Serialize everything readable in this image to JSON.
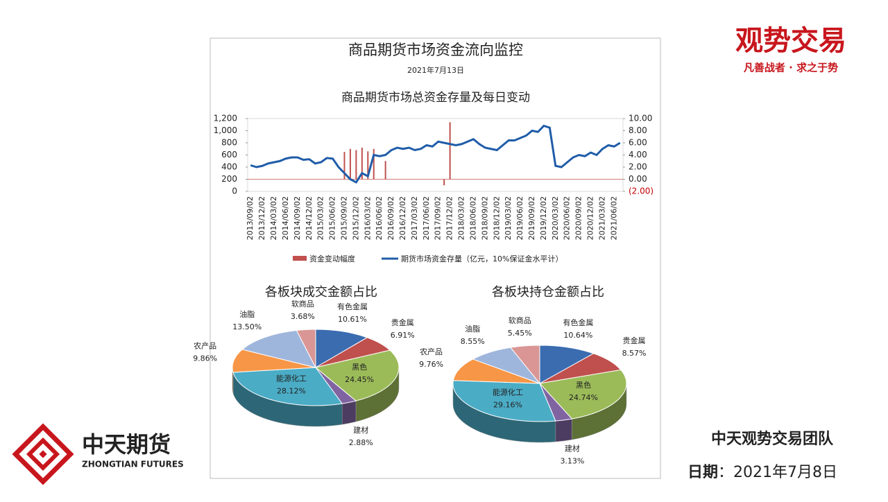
{
  "slide": {
    "logo_title": "观势交易",
    "logo_motto": "凡善战者 · 求之于势",
    "company_cn": "中天期货",
    "company_en": "ZHONGTIAN FUTURES",
    "team": "中天观势交易团队",
    "date_label": "日期",
    "date_value": "：2021年7月8日"
  },
  "report": {
    "title": "商品期货市场资金流向监控",
    "date": "2021年7月13日"
  },
  "chart_data": [
    {
      "type": "combo",
      "title": "商品期货市场总资金存量及每日变动",
      "categories": [
        "2013/09/02",
        null,
        "2013/12/02",
        null,
        "2014/03/02",
        null,
        "2014/06/02",
        null,
        "2014/09/02",
        null,
        "2014/12/02",
        null,
        "2015/03/02",
        null,
        "2015/06/02",
        null,
        "2015/09/02",
        null,
        "2015/12/02",
        null,
        "2016/03/02",
        null,
        "2016/06/02",
        null,
        "2016/09/02",
        null,
        "2016/12/02",
        null,
        "2017/03/02",
        null,
        "2017/06/02",
        null,
        "2017/09/02",
        null,
        "2017/12/02",
        null,
        "2018/03/02",
        null,
        "2018/06/02",
        null,
        "2018/09/02",
        null,
        "2018/12/02",
        null,
        "2019/03/02",
        null,
        "2019/06/02",
        null,
        "2019/09/02",
        null,
        "2019/12/02",
        null,
        "2020/03/02",
        null,
        "2020/06/02",
        null,
        "2020/09/02",
        null,
        "2020/12/02",
        null,
        "2021/03/02",
        null,
        "2021/06/02",
        null
      ],
      "series": [
        {
          "name": "资金变动幅度",
          "color": "#c0504d",
          "axis": "y2",
          "kind": "bar",
          "values": [
            0,
            0,
            0,
            0,
            0,
            0,
            0,
            0,
            0,
            0,
            0,
            0,
            0,
            0,
            0,
            0,
            4.5,
            5,
            4.8,
            5.2,
            4.6,
            5.0,
            0,
            3.0,
            0,
            0,
            0,
            0,
            0,
            0,
            0,
            0,
            0,
            -1.0,
            9.4,
            0,
            0,
            0,
            0,
            0,
            0,
            0,
            0,
            0,
            0,
            0,
            0,
            0,
            0,
            0,
            0,
            0,
            0,
            0,
            0,
            0,
            0,
            0,
            0,
            0,
            0,
            0,
            0,
            0
          ]
        },
        {
          "name": "期货市场资金存量（亿元，10%保证金水平计）",
          "color": "#1f5ca8",
          "kind": "line",
          "values": [
            430,
            400,
            420,
            460,
            480,
            500,
            540,
            560,
            560,
            520,
            530,
            460,
            480,
            550,
            540,
            400,
            300,
            200,
            150,
            300,
            250,
            600,
            580,
            600,
            680,
            720,
            700,
            720,
            680,
            700,
            760,
            740,
            820,
            800,
            780,
            760,
            780,
            820,
            860,
            780,
            720,
            700,
            680,
            760,
            840,
            840,
            880,
            920,
            1000,
            980,
            1080,
            1050,
            420,
            400,
            480,
            560,
            600,
            580,
            640,
            600,
            700,
            760,
            740,
            800
          ]
        }
      ],
      "ylim": [
        0,
        1200
      ],
      "yticks": [
        0,
        200,
        400,
        600,
        800,
        {
          "value": 1000,
          "label": "1,000"
        },
        {
          "value": 1200,
          "label": "1,200"
        }
      ],
      "y2lim": [
        -2,
        10
      ],
      "y2ticks": [
        {
          "value": -2,
          "label": "(2.00)"
        },
        {
          "value": 0,
          "label": "0.00"
        },
        {
          "value": 2,
          "label": "2.00"
        },
        {
          "value": 4,
          "label": "4.00"
        },
        {
          "value": 6,
          "label": "6.00"
        },
        {
          "value": 8,
          "label": "8.00"
        },
        {
          "value": 10,
          "label": "10.00"
        }
      ]
    },
    {
      "type": "pie",
      "title": "各板块成交金额占比",
      "categories": [
        "有色金属",
        "贵金属",
        "黑色",
        "建材",
        "能源化工",
        "农产品",
        "油脂",
        "软商品"
      ],
      "values": [
        10.61,
        6.91,
        24.45,
        2.88,
        28.12,
        9.86,
        13.5,
        3.68
      ],
      "value_labels": [
        "10.61%",
        "6.91%",
        "24.45%",
        "2.88%",
        "28.12%",
        "9.86%",
        "13.50%",
        "3.68%"
      ],
      "colors": [
        "#3b6cb0",
        "#c0504d",
        "#9bbb59",
        "#8064a2",
        "#4bacc6",
        "#f79646",
        "#9fb6dc",
        "#d99694"
      ]
    },
    {
      "type": "pie",
      "title": "各板块持仓金额占比",
      "categories": [
        "有色金属",
        "贵金属",
        "黑色",
        "建材",
        "能源化工",
        "农产品",
        "油脂",
        "软商品"
      ],
      "values": [
        10.64,
        8.57,
        24.74,
        3.13,
        29.16,
        9.76,
        8.55,
        5.45
      ],
      "value_labels": [
        "10.64%",
        "8.57%",
        "24.74%",
        "3.13%",
        "29.16%",
        "9.76%",
        "8.55%",
        "5.45%"
      ],
      "colors": [
        "#3b6cb0",
        "#c0504d",
        "#9bbb59",
        "#8064a2",
        "#4bacc6",
        "#f79646",
        "#9fb6dc",
        "#d99694"
      ]
    }
  ]
}
